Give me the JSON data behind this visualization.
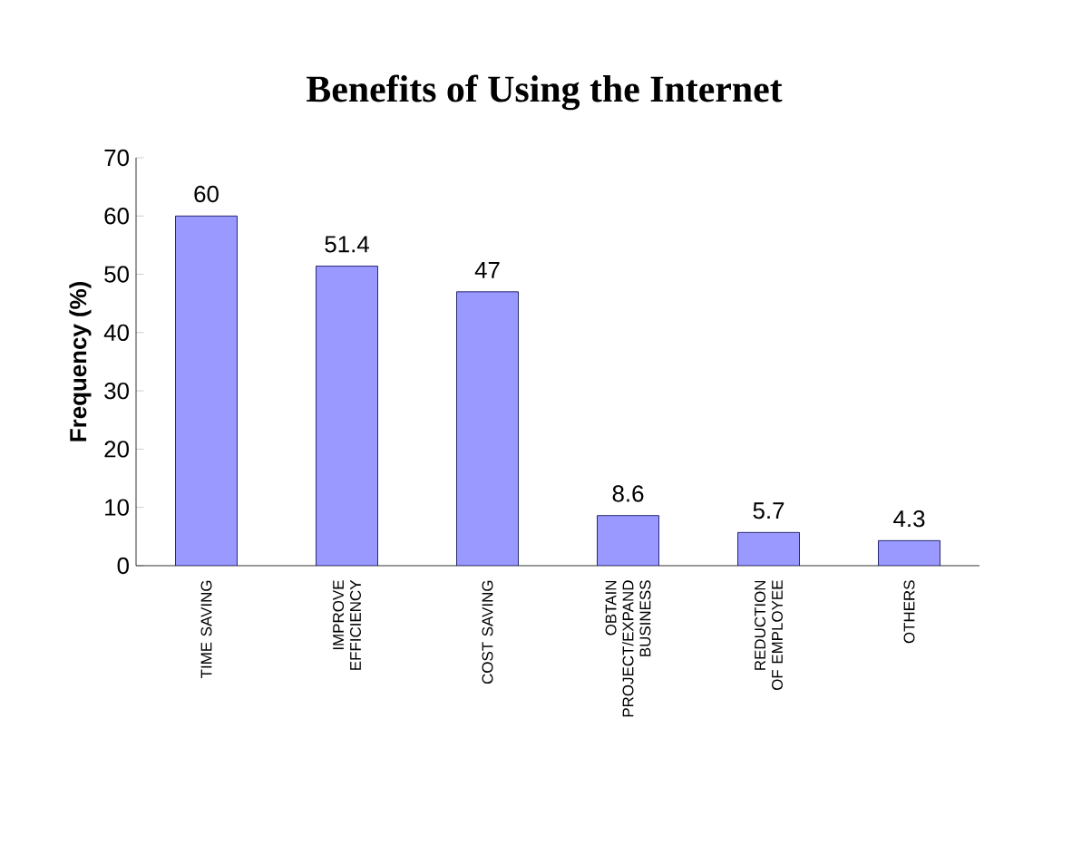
{
  "chart_data": {
    "type": "bar",
    "title": "Benefits of Using the Internet",
    "ylabel": "Frequency (%)",
    "categories": [
      "TIME SAVING",
      "IMPROVE EFFICIENCY",
      "COST SAVING",
      "OBTAIN PROJECT/EXPAND BUSINESS",
      "REDUCTION OF EMPLOYEE",
      "OTHERS"
    ],
    "values": [
      60,
      51.4,
      47,
      8.6,
      5.7,
      4.3
    ],
    "color": "#9999ff",
    "ylim": [
      0,
      70
    ],
    "yticks": [
      0,
      10,
      20,
      30,
      40,
      50,
      60,
      70
    ],
    "data_labels": true
  }
}
